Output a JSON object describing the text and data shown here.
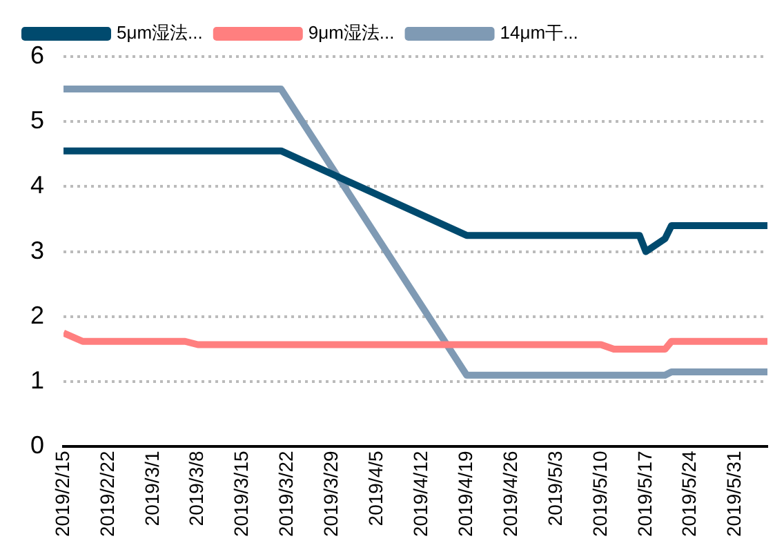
{
  "chart_data": {
    "type": "line",
    "series": [
      {
        "name": "5μm湿法...",
        "color": "#004a6e",
        "x": [
          "2019-02-15",
          "2019-03-21",
          "2019-04-19",
          "2019-05-16",
          "2019-05-17",
          "2019-05-20",
          "2019-05-21",
          "2019-06-05"
        ],
        "values": [
          4.55,
          4.55,
          3.25,
          3.25,
          3.0,
          3.2,
          3.4,
          3.4
        ]
      },
      {
        "name": "9μm湿法...",
        "color": "#ff7f7f",
        "x": [
          "2019-02-15",
          "2019-02-18",
          "2019-03-06",
          "2019-03-08",
          "2019-05-10",
          "2019-05-12",
          "2019-05-20",
          "2019-05-21",
          "2019-06-05"
        ],
        "values": [
          1.75,
          1.62,
          1.62,
          1.57,
          1.57,
          1.5,
          1.5,
          1.62,
          1.62
        ]
      },
      {
        "name": "14μm干...",
        "color": "#7f9ab4",
        "x": [
          "2019-02-15",
          "2019-03-21",
          "2019-04-19",
          "2019-05-20",
          "2019-05-21",
          "2019-06-05"
        ],
        "values": [
          5.5,
          5.5,
          1.1,
          1.1,
          1.15,
          1.15
        ]
      }
    ],
    "xlim": [
      "2019-02-15",
      "2019-06-05"
    ],
    "xticks": [
      {
        "value": "2019-02-15",
        "label": "2019/2/15"
      },
      {
        "value": "2019-02-22",
        "label": "2019/2/22"
      },
      {
        "value": "2019-03-01",
        "label": "2019/3/1"
      },
      {
        "value": "2019-03-08",
        "label": "2019/3/8"
      },
      {
        "value": "2019-03-15",
        "label": "2019/3/15"
      },
      {
        "value": "2019-03-22",
        "label": "2019/3/22"
      },
      {
        "value": "2019-03-29",
        "label": "2019/3/29"
      },
      {
        "value": "2019-04-05",
        "label": "2019/4/5"
      },
      {
        "value": "2019-04-12",
        "label": "2019/4/12"
      },
      {
        "value": "2019-04-19",
        "label": "2019/4/19"
      },
      {
        "value": "2019-04-26",
        "label": "2019/4/26"
      },
      {
        "value": "2019-05-03",
        "label": "2019/5/3"
      },
      {
        "value": "2019-05-10",
        "label": "2019/5/10"
      },
      {
        "value": "2019-05-17",
        "label": "2019/5/17"
      },
      {
        "value": "2019-05-24",
        "label": "2019/5/24"
      },
      {
        "value": "2019-05-31",
        "label": "2019/5/31"
      }
    ],
    "ylim": [
      0,
      6
    ],
    "yticks": [
      0,
      1,
      2,
      3,
      4,
      5,
      6
    ],
    "grid": "y",
    "legend": "top",
    "marker": "none",
    "line_style": "solid"
  }
}
